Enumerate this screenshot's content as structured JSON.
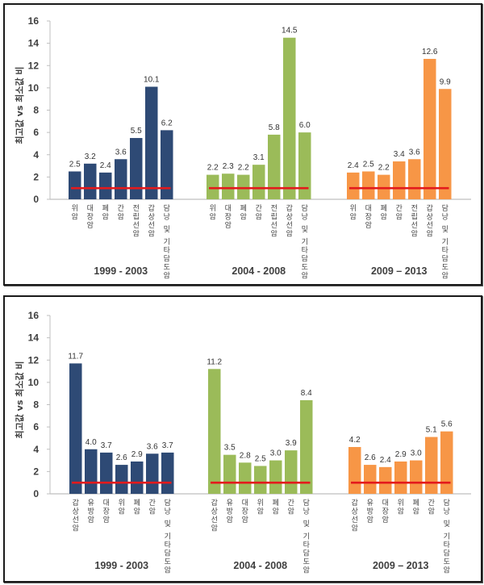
{
  "colors": {
    "group_1": "#2E4A75",
    "group_2": "#9BBB59",
    "group_3": "#F79646",
    "reference_line": "#E31A1C",
    "axis": "#BFBFBF"
  },
  "chart_data": [
    {
      "type": "bar",
      "title": "",
      "ylabel": "최고값 vs 최소값 비",
      "xlabel": "",
      "ylim": [
        0,
        16
      ],
      "yticks": [
        0,
        2,
        4,
        6,
        8,
        10,
        12,
        14,
        16
      ],
      "grid": false,
      "reference_line": 1,
      "groups": [
        {
          "label": "1999 - 2003",
          "categories": [
            "위암",
            "대장암",
            "폐암",
            "간암",
            "전립선암",
            "갑상선암",
            "담낭 및 기타담도암"
          ],
          "values": [
            2.5,
            3.2,
            2.4,
            3.6,
            5.5,
            10.1,
            6.2
          ],
          "value_labels": [
            "2.5",
            "3.2",
            "2.4",
            "3.6",
            "5.5",
            "10.1",
            "6.2"
          ]
        },
        {
          "label": "2004 - 2008",
          "categories": [
            "위암",
            "대장암",
            "폐암",
            "간암",
            "전립선암",
            "갑상선암",
            "담낭 및 기타담도암"
          ],
          "values": [
            2.2,
            2.3,
            2.2,
            3.1,
            5.8,
            14.5,
            6.0
          ],
          "value_labels": [
            "2.2",
            "2.3",
            "2.2",
            "3.1",
            "5.8",
            "14.5",
            "6.0"
          ]
        },
        {
          "label": "2009 – 2013",
          "categories": [
            "위암",
            "대장암",
            "폐암",
            "간암",
            "전립선암",
            "갑상선암",
            "담낭 및 기타담도암"
          ],
          "values": [
            2.4,
            2.5,
            2.2,
            3.4,
            3.6,
            12.6,
            9.9
          ],
          "value_labels": [
            "2.4",
            "2.5",
            "2.2",
            "3.4",
            "3.6",
            "12.6",
            "9.9"
          ]
        }
      ]
    },
    {
      "type": "bar",
      "title": "",
      "ylabel": "최고값 vs 최소값 비",
      "xlabel": "",
      "ylim": [
        0,
        16
      ],
      "yticks": [
        0,
        2,
        4,
        6,
        8,
        10,
        12,
        14,
        16
      ],
      "grid": false,
      "reference_line": 1,
      "groups": [
        {
          "label": "1999 - 2003",
          "categories": [
            "갑상선암",
            "유방암",
            "대장암",
            "위암",
            "폐암",
            "간암",
            "담낭 및 기타담도암"
          ],
          "values": [
            11.7,
            4.0,
            3.7,
            2.6,
            2.9,
            3.6,
            3.7
          ],
          "value_labels": [
            "11.7",
            "4.0",
            "3.7",
            "2.6",
            "2.9",
            "3.6",
            "3.7"
          ]
        },
        {
          "label": "2004 - 2008",
          "categories": [
            "갑상선암",
            "유방암",
            "대장암",
            "위암",
            "폐암",
            "간암",
            "담낭 및 기타담도암"
          ],
          "values": [
            11.2,
            3.5,
            2.8,
            2.5,
            3.0,
            3.9,
            8.4
          ],
          "value_labels": [
            "11.2",
            "3.5",
            "2.8",
            "2.5",
            "3.0",
            "3.9",
            "8.4"
          ]
        },
        {
          "label": "2009 – 2013",
          "categories": [
            "갑상선암",
            "유방암",
            "대장암",
            "위암",
            "폐암",
            "간암",
            "담낭 및 기타담도암"
          ],
          "values": [
            4.2,
            2.6,
            2.4,
            2.9,
            3.0,
            5.1,
            5.6
          ],
          "value_labels": [
            "4.2",
            "2.6",
            "2.4",
            "2.9",
            "3.0",
            "5.1",
            "5.6"
          ]
        }
      ]
    }
  ]
}
